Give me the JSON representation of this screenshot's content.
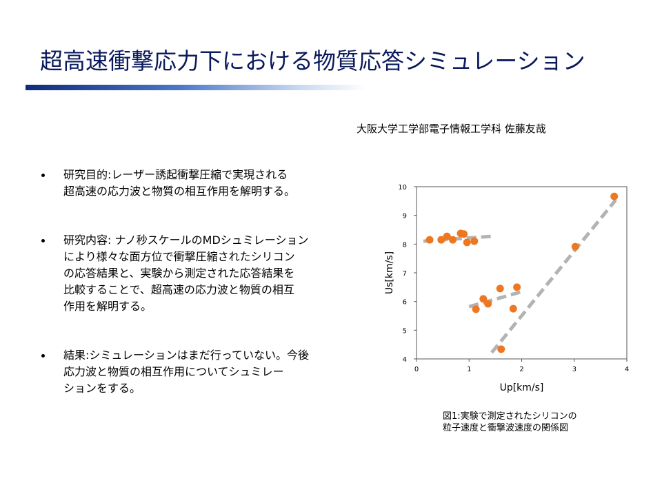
{
  "title": "超高速衝撃応力下における物質応答シミュレーション",
  "author": "大阪大学工学部電子情報工学科 佐藤友哉",
  "bullets": [
    [
      "研究目的:レーザー誘起衝撃圧縮で実現される",
      "超高速の応力波と物質の相互作用を解明する。"
    ],
    [
      "研究内容: ナノ秒スケールのMDシュミレーション",
      "により様々な面方位で衝撃圧縮されたシリコン",
      "の応答結果と、実験から測定された応答結果を",
      "比較することで、超高速の応力波と物質の相互",
      "作用を解明する。"
    ],
    [
      "結果:シミュレーションはまだ行っていない。今後",
      "応力波と物質の相互作用についてシュミレー",
      "ションをする。"
    ]
  ],
  "caption": [
    "図1:実験で測定されたシリコンの",
    "粒子速度と衝撃波速度の関係図"
  ],
  "chart_data": {
    "type": "scatter",
    "xlabel": "Up[km/s]",
    "ylabel": "Us[km/s]",
    "xlim": [
      0,
      4
    ],
    "xticks": [
      0,
      1,
      2,
      3,
      4
    ],
    "ylim": [
      4,
      10
    ],
    "yticks": [
      4,
      5,
      6,
      7,
      8,
      9,
      10
    ],
    "color": "#ee7722",
    "x": [
      0.25,
      0.47,
      0.58,
      0.69,
      0.84,
      0.9,
      0.96,
      1.1,
      1.13,
      1.27,
      1.36,
      1.59,
      1.84,
      1.91,
      1.61,
      3.02,
      3.76
    ],
    "values": [
      8.15,
      8.15,
      8.27,
      8.15,
      8.37,
      8.35,
      8.06,
      8.1,
      5.73,
      6.09,
      5.92,
      6.45,
      5.75,
      6.5,
      4.34,
      7.91,
      9.66
    ],
    "trend_lines": {
      "color": "#b3b3b3",
      "lines": [
        {
          "x": [
            0.13,
            1.42
          ],
          "values": [
            8.1,
            8.27
          ]
        },
        {
          "x": [
            1.0,
            1.98
          ],
          "values": [
            5.82,
            6.33
          ]
        },
        {
          "x": [
            1.43,
            3.79
          ],
          "values": [
            4.22,
            9.54
          ]
        }
      ]
    }
  }
}
